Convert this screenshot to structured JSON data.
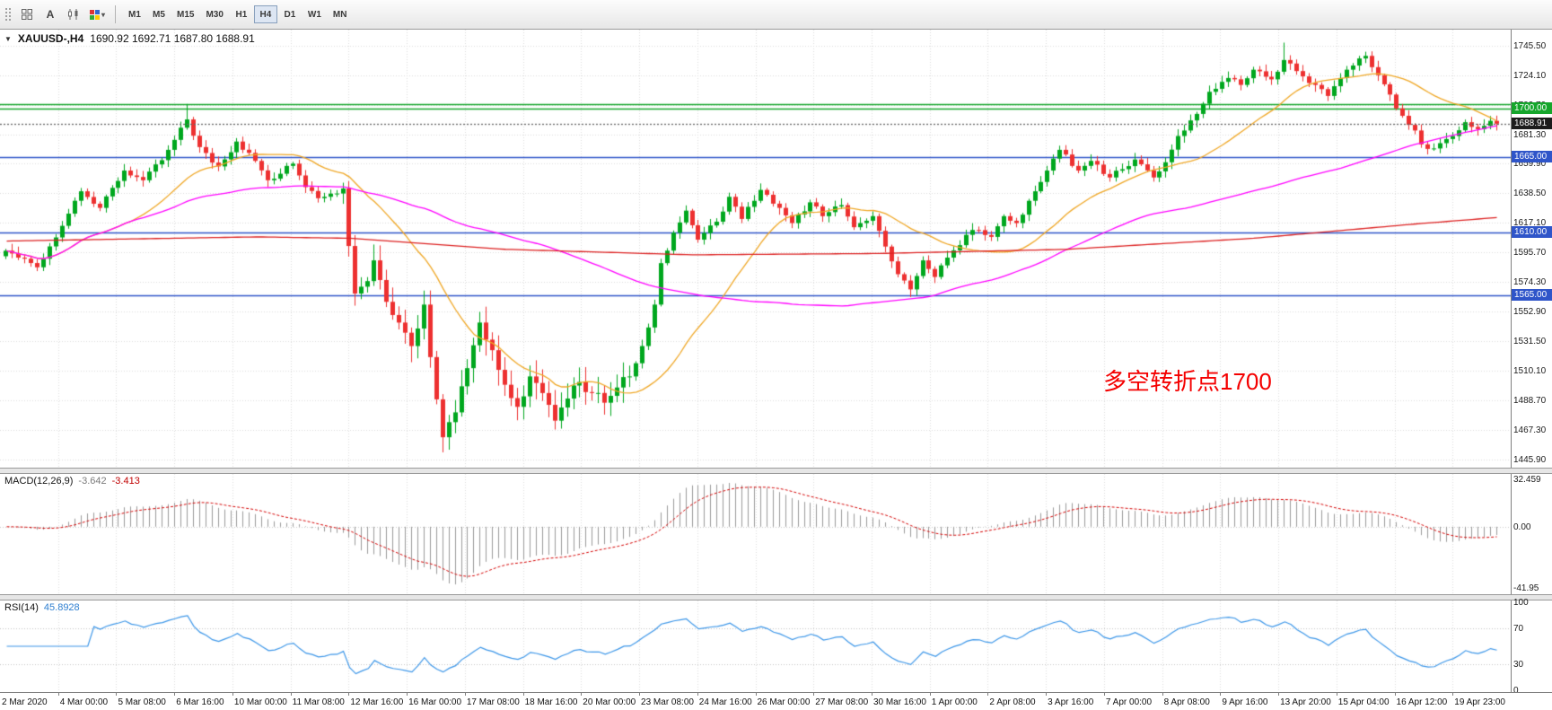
{
  "app": {
    "name": "MetaTrader chart window"
  },
  "icons": {
    "symbol_arrow": "▼",
    "chevron_down": "▾"
  },
  "toolbar": {
    "tools": [
      {
        "id": "chart-grid",
        "type": "icon"
      },
      {
        "id": "text-tool",
        "label": "A"
      },
      {
        "id": "chart-type",
        "type": "icon"
      },
      {
        "id": "colors",
        "type": "icon",
        "chevron": true
      }
    ],
    "timeframes": [
      "M1",
      "M5",
      "M15",
      "M30",
      "H1",
      "H4",
      "D1",
      "W1",
      "MN"
    ],
    "active_timeframe": "H4"
  },
  "chart": {
    "symbol_label": "XAUUSD-,H4",
    "ohlc_text": "1690.92 1692.71 1687.80 1688.91",
    "open": "1690.92",
    "high": "1692.71",
    "low": "1687.80",
    "close": "1688.91",
    "price_axis_labels": [
      "1745.50",
      "1724.10",
      "1702.70",
      "1681.30",
      "1659.90",
      "1638.50",
      "1617.10",
      "1595.70",
      "1574.30",
      "1552.90",
      "1531.50",
      "1510.10",
      "1488.70",
      "1467.30",
      "1445.90"
    ],
    "price_axis_top_value": 1745.5,
    "price_axis_step": 21.4,
    "levels": [
      {
        "price": 1703.0,
        "label": "",
        "color": "#16A62C",
        "badge": false
      },
      {
        "price": 1700.0,
        "label": "1700.00",
        "color": "#16A62C",
        "badge": true
      },
      {
        "price": 1665.0,
        "label": "1665.00",
        "color": "#2F55C9",
        "badge": true
      },
      {
        "price": 1610.0,
        "label": "1610.00",
        "color": "#2F55C9",
        "badge": true
      },
      {
        "price": 1565.0,
        "label": "1565.00",
        "color": "#2F55C9",
        "badge": true
      }
    ],
    "bid": {
      "value": 1688.91,
      "label": "1688.91",
      "badge_color": "#1c1c1c"
    },
    "annotation": {
      "text": "多空转折点1700",
      "color": "#F40000"
    }
  },
  "macd": {
    "label": "MACD(12,26,9)",
    "value_main": "-3.642",
    "value_signal": "-3.413",
    "axis_labels": [
      "32.459",
      "0.00",
      "-41.95"
    ]
  },
  "rsi": {
    "label": "RSI(14)",
    "value": "45.8928",
    "axis_labels": [
      "100",
      "70",
      "30",
      "0"
    ],
    "levels": [
      70,
      30
    ]
  },
  "time_axis": {
    "labels": [
      "2 Mar 2020",
      "4 Mar 00:00",
      "5 Mar 08:00",
      "6 Mar 16:00",
      "10 Mar 00:00",
      "11 Mar 08:00",
      "12 Mar 16:00",
      "16 Mar 00:00",
      "17 Mar 08:00",
      "18 Mar 16:00",
      "20 Mar 00:00",
      "23 Mar 08:00",
      "24 Mar 16:00",
      "26 Mar 00:00",
      "27 Mar 08:00",
      "30 Mar 16:00",
      "1 Apr 00:00",
      "2 Apr 08:00",
      "3 Apr 16:00",
      "7 Apr 00:00",
      "8 Apr 08:00",
      "9 Apr 16:00",
      "13 Apr 20:00",
      "15 Apr 04:00",
      "16 Apr 12:00",
      "19 Apr 23:00"
    ]
  },
  "chart_data": {
    "type": "candlestick",
    "symbol": "XAUUSD",
    "timeframe": "H4",
    "bars": 240,
    "price_range": [
      1440,
      1757
    ],
    "last_close": 1688.91,
    "close_waypoints": [
      [
        0,
        1597
      ],
      [
        5,
        1585
      ],
      [
        9,
        1615
      ],
      [
        12,
        1640
      ],
      [
        15,
        1628
      ],
      [
        19,
        1655
      ],
      [
        22,
        1648
      ],
      [
        26,
        1670
      ],
      [
        29,
        1692
      ],
      [
        31,
        1672
      ],
      [
        34,
        1658
      ],
      [
        37,
        1676
      ],
      [
        40,
        1662
      ],
      [
        42,
        1648
      ],
      [
        46,
        1660
      ],
      [
        48,
        1643
      ],
      [
        50,
        1635
      ],
      [
        54,
        1642
      ],
      [
        56,
        1566
      ],
      [
        58,
        1575
      ],
      [
        59,
        1590
      ],
      [
        61,
        1560
      ],
      [
        63,
        1545
      ],
      [
        65,
        1528
      ],
      [
        67,
        1558
      ],
      [
        68,
        1520
      ],
      [
        70,
        1462
      ],
      [
        72,
        1480
      ],
      [
        74,
        1512
      ],
      [
        76,
        1545
      ],
      [
        78,
        1525
      ],
      [
        80,
        1500
      ],
      [
        82,
        1484
      ],
      [
        84,
        1506
      ],
      [
        86,
        1494
      ],
      [
        88,
        1474
      ],
      [
        90,
        1490
      ],
      [
        92,
        1502
      ],
      [
        94,
        1494
      ],
      [
        96,
        1487
      ],
      [
        98,
        1498
      ],
      [
        100,
        1506
      ],
      [
        102,
        1528
      ],
      [
        104,
        1558
      ],
      [
        105,
        1588
      ],
      [
        107,
        1610
      ],
      [
        109,
        1626
      ],
      [
        111,
        1605
      ],
      [
        114,
        1618
      ],
      [
        116,
        1636
      ],
      [
        118,
        1620
      ],
      [
        121,
        1641
      ],
      [
        124,
        1628
      ],
      [
        126,
        1617
      ],
      [
        129,
        1632
      ],
      [
        131,
        1622
      ],
      [
        134,
        1630
      ],
      [
        136,
        1614
      ],
      [
        139,
        1622
      ],
      [
        141,
        1600
      ],
      [
        143,
        1580
      ],
      [
        145,
        1569
      ],
      [
        147,
        1590
      ],
      [
        149,
        1578
      ],
      [
        151,
        1592
      ],
      [
        153,
        1601
      ],
      [
        155,
        1612
      ],
      [
        158,
        1607
      ],
      [
        160,
        1622
      ],
      [
        162,
        1617
      ],
      [
        165,
        1640
      ],
      [
        167,
        1655
      ],
      [
        169,
        1670
      ],
      [
        172,
        1655
      ],
      [
        174,
        1662
      ],
      [
        177,
        1650
      ],
      [
        179,
        1656
      ],
      [
        181,
        1663
      ],
      [
        184,
        1650
      ],
      [
        186,
        1661
      ],
      [
        188,
        1680
      ],
      [
        191,
        1696
      ],
      [
        193,
        1712
      ],
      [
        196,
        1722
      ],
      [
        198,
        1717
      ],
      [
        200,
        1728
      ],
      [
        203,
        1721
      ],
      [
        205,
        1735
      ],
      [
        207,
        1727
      ],
      [
        210,
        1717
      ],
      [
        212,
        1709
      ],
      [
        214,
        1722
      ],
      [
        216,
        1731
      ],
      [
        218,
        1738
      ],
      [
        220,
        1724
      ],
      [
        222,
        1710
      ],
      [
        223,
        1700
      ],
      [
        226,
        1684
      ],
      [
        227,
        1674
      ],
      [
        229,
        1671
      ],
      [
        232,
        1680
      ],
      [
        234,
        1690
      ],
      [
        236,
        1685
      ],
      [
        238,
        1691
      ],
      [
        239,
        1688.91
      ]
    ],
    "special_wicks": [
      [
        29,
        "high",
        1703.2
      ],
      [
        70,
        "low",
        1451.1
      ],
      [
        145,
        "low",
        1563.5
      ],
      [
        205,
        "high",
        1747.6
      ],
      [
        218,
        "high",
        1741.0
      ]
    ],
    "moving_averages": [
      {
        "name": "fast",
        "period": 21,
        "color": "#EFA726"
      },
      {
        "name": "medium",
        "period": 80,
        "color": "#FF00FF"
      },
      {
        "name": "slow",
        "period": 200,
        "color": "#DC2020"
      }
    ],
    "slow_ma_waypoints": [
      [
        0,
        1604
      ],
      [
        40,
        1607
      ],
      [
        55,
        1606
      ],
      [
        80,
        1598
      ],
      [
        110,
        1594
      ],
      [
        140,
        1595
      ],
      [
        170,
        1598
      ],
      [
        200,
        1606
      ],
      [
        225,
        1616
      ],
      [
        239,
        1621
      ]
    ],
    "macd": {
      "fast": 12,
      "slow": 26,
      "signal": 9,
      "range": [
        -46,
        36
      ],
      "hist_color": "#9A9A9A",
      "signal_color": "#D40000"
    },
    "rsi": {
      "period": 14,
      "range": [
        0,
        100
      ],
      "color": "#3C96E8"
    },
    "candle_colors": {
      "bull": "#00A71E",
      "bear": "#ED3030"
    }
  },
  "colors": {
    "grid": "#DBDBDB",
    "axis_text": "#1A1A1A",
    "panel_bg": "#FFFFFF",
    "border": "#808080"
  }
}
